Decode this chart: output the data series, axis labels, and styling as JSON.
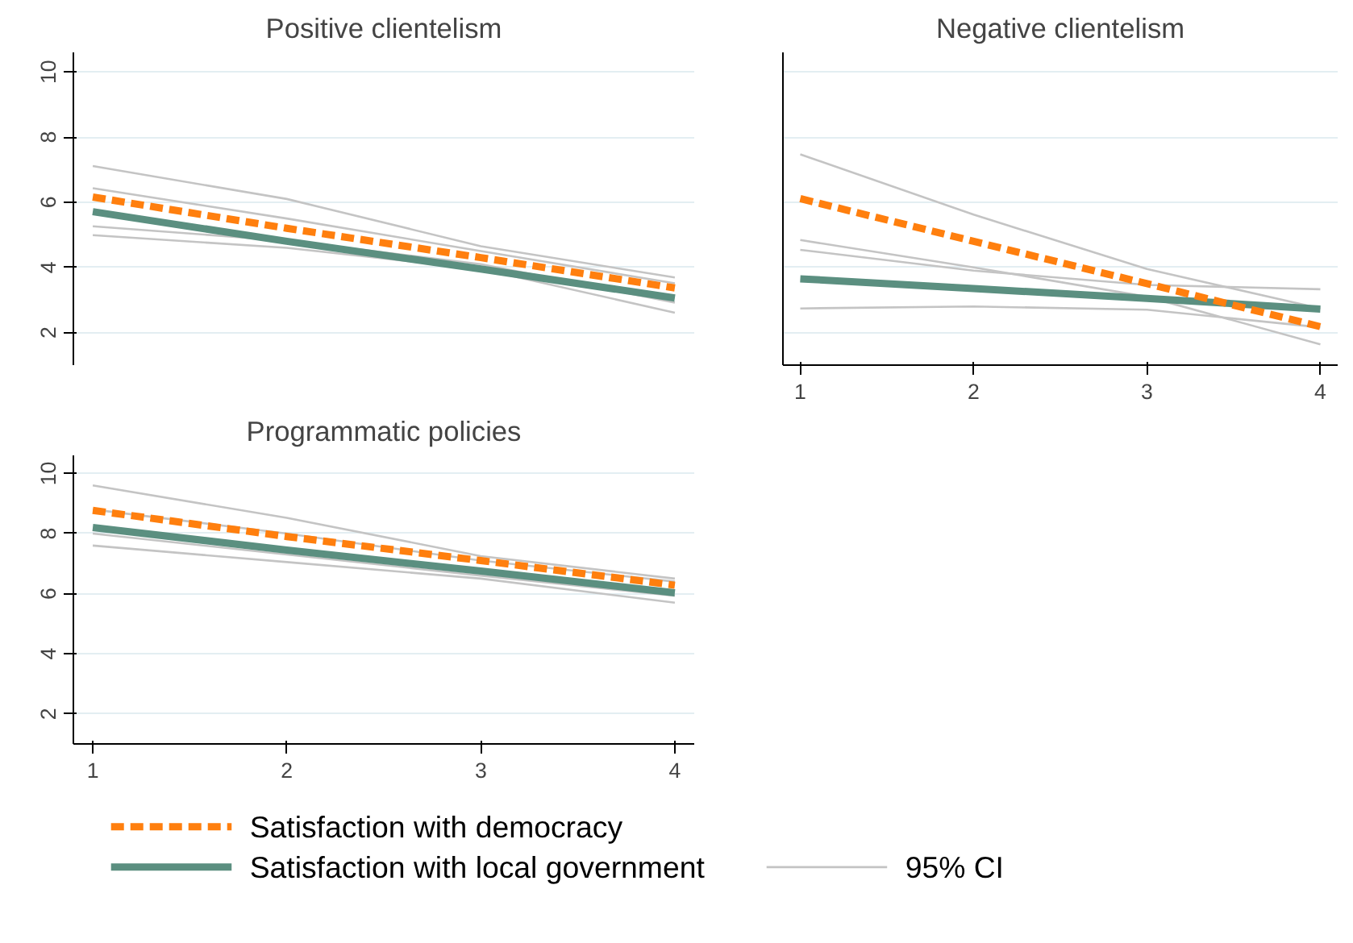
{
  "chart_data": [
    {
      "type": "line",
      "title": "Positive clientelism",
      "x": [
        1,
        2,
        3,
        4
      ],
      "xlim": [
        0.9,
        4.1
      ],
      "ylim": [
        1,
        10.6
      ],
      "xticks": [
        1,
        2,
        3,
        4
      ],
      "yticks": [
        2,
        4,
        6,
        8,
        10
      ],
      "tick_labels": "y",
      "grid": "y",
      "legend": "bottom",
      "series": [
        {
          "name": "Satisfaction with democracy",
          "color": "#ff7f0e",
          "line_style": "dashed",
          "values": [
            6.16,
            5.2,
            4.3,
            3.37
          ]
        },
        {
          "name": "Satisfaction with local government",
          "color": "#5b8f80",
          "line_style": "solid",
          "values": [
            5.71,
            4.8,
            3.95,
            3.06
          ]
        },
        {
          "name": "95% CI",
          "color": "#c4c4c4",
          "line_style": "solid",
          "values": [
            7.11,
            6.1,
            4.65,
            3.69
          ]
        },
        {
          "color": "#c4c4c4",
          "line_style": "solid",
          "values": [
            5.26,
            4.82,
            4.1,
            2.92
          ]
        },
        {
          "color": "#c4c4c4",
          "line_style": "solid",
          "values": [
            6.43,
            5.5,
            4.5,
            3.51
          ]
        },
        {
          "color": "#c4c4c4",
          "line_style": "solid",
          "values": [
            4.99,
            4.6,
            3.95,
            2.61
          ]
        }
      ]
    },
    {
      "type": "line",
      "title": "Negative clientelism",
      "x": [
        1,
        2,
        3,
        4
      ],
      "xlim": [
        0.9,
        4.1
      ],
      "ylim": [
        1,
        10.6
      ],
      "xticks": [
        1,
        2,
        3,
        4
      ],
      "yticks": [
        2,
        4,
        6,
        8,
        10
      ],
      "tick_labels": "x",
      "grid": "y",
      "series": [
        {
          "color": "#ff7f0e",
          "line_style": "dashed",
          "values": [
            6.11,
            4.8,
            3.5,
            2.18
          ]
        },
        {
          "color": "#5b8f80",
          "line_style": "solid",
          "values": [
            3.65,
            3.35,
            3.05,
            2.72
          ]
        },
        {
          "color": "#c4c4c4",
          "line_style": "solid",
          "values": [
            7.47,
            5.62,
            3.95,
            2.74
          ]
        },
        {
          "color": "#c4c4c4",
          "line_style": "solid",
          "values": [
            4.84,
            4.0,
            3.1,
            1.64
          ]
        },
        {
          "color": "#c4c4c4",
          "line_style": "solid",
          "values": [
            4.54,
            3.9,
            3.46,
            3.33
          ]
        },
        {
          "color": "#c4c4c4",
          "line_style": "solid",
          "values": [
            2.74,
            2.8,
            2.7,
            2.16
          ]
        }
      ]
    },
    {
      "type": "line",
      "title": "Programmatic policies",
      "x": [
        1,
        2,
        3,
        4
      ],
      "xlim": [
        0.9,
        4.1
      ],
      "ylim": [
        1,
        10.6
      ],
      "xticks": [
        1,
        2,
        3,
        4
      ],
      "yticks": [
        2,
        4,
        6,
        8,
        10
      ],
      "grid": "y",
      "series": [
        {
          "color": "#ff7f0e",
          "line_style": "dashed",
          "values": [
            8.77,
            7.9,
            7.1,
            6.28
          ]
        },
        {
          "color": "#5b8f80",
          "line_style": "solid",
          "values": [
            8.2,
            7.45,
            6.75,
            6.03
          ]
        },
        {
          "color": "#c4c4c4",
          "line_style": "solid",
          "values": [
            9.6,
            8.52,
            7.25,
            6.5
          ]
        },
        {
          "color": "#c4c4c4",
          "line_style": "solid",
          "values": [
            8.0,
            7.3,
            6.6,
            5.93
          ]
        },
        {
          "color": "#c4c4c4",
          "line_style": "solid",
          "values": [
            8.8,
            8.0,
            7.1,
            6.4
          ]
        },
        {
          "color": "#c4c4c4",
          "line_style": "solid",
          "values": [
            7.6,
            7.05,
            6.5,
            5.7
          ]
        }
      ]
    }
  ]
}
